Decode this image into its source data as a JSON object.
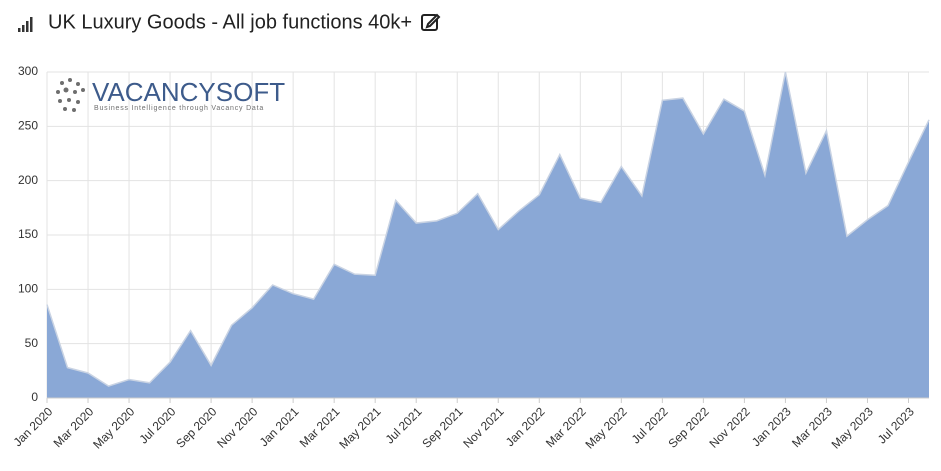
{
  "title": "UK Luxury Goods - All job functions 40k+",
  "logo": {
    "name": "VACANCYSOFT",
    "tagline": "Business Intelligence through Vacancy Data"
  },
  "chart_data": {
    "type": "area",
    "categories": [
      "Jan 2020",
      null,
      "Mar 2020",
      null,
      "May 2020",
      null,
      "Jul 2020",
      null,
      "Sep 2020",
      null,
      "Nov 2020",
      null,
      "Jan 2021",
      null,
      "Mar 2021",
      null,
      "May 2021",
      null,
      "Jul 2021",
      null,
      "Sep 2021",
      null,
      "Nov 2021",
      null,
      "Jan 2022",
      null,
      "Mar 2022",
      null,
      "May 2022",
      null,
      "Jul 2022",
      null,
      "Sep 2022",
      null,
      "Nov 2022",
      null,
      "Jan 2023",
      null,
      "Mar 2023",
      null,
      "May 2023",
      null,
      "Jul 2023",
      null
    ],
    "series": [
      {
        "color": "#8aa8d6",
        "values": [
          86,
          28,
          23,
          11,
          17,
          14,
          33,
          62,
          30,
          67,
          83,
          104,
          96,
          91,
          123,
          114,
          113,
          182,
          161,
          163,
          170,
          188,
          155,
          172,
          187,
          224,
          184,
          180,
          213,
          186,
          274,
          276,
          243,
          275,
          264,
          205,
          300,
          207,
          246,
          149,
          164,
          177,
          217,
          256
        ]
      }
    ],
    "ylim": [
      0,
      300
    ],
    "yticks": [
      0,
      50,
      100,
      150,
      200,
      250,
      300
    ],
    "grid": true
  }
}
